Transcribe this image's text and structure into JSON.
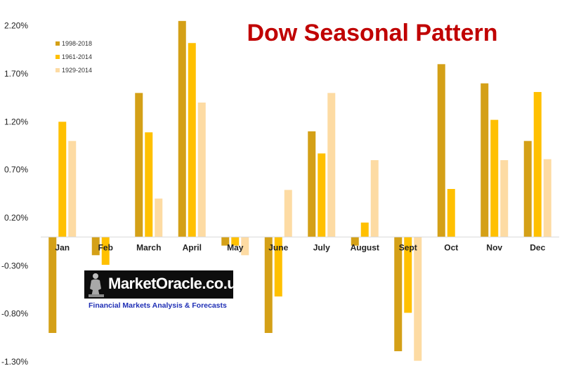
{
  "chart_data": {
    "type": "bar",
    "title": "Dow Seasonal Pattern",
    "categories": [
      "Jan",
      "Feb",
      "March",
      "April",
      "May",
      "June",
      "July",
      "August",
      "Sept",
      "Oct",
      "Nov",
      "Dec"
    ],
    "series": [
      {
        "name": "1998-2018",
        "color": "#d4a017",
        "values": [
          -1.0,
          -0.19,
          1.5,
          2.25,
          -0.09,
          -1.0,
          1.1,
          -0.09,
          -1.19,
          1.8,
          1.6,
          1.0
        ]
      },
      {
        "name": "1961-2014",
        "color": "#ffc000",
        "values": [
          1.2,
          -0.29,
          1.09,
          2.02,
          -0.09,
          -0.62,
          0.87,
          0.15,
          -0.79,
          0.5,
          1.22,
          1.51
        ]
      },
      {
        "name": "1929-2014",
        "color": "#fddba3",
        "values": [
          1.0,
          0.0,
          0.4,
          1.4,
          -0.19,
          0.49,
          1.5,
          0.8,
          -1.29,
          0.0,
          0.8,
          0.81
        ]
      }
    ],
    "yticks": [
      "2.20%",
      "1.70%",
      "1.20%",
      "0.70%",
      "0.20%",
      "-0.30%",
      "-0.80%",
      "-1.30%"
    ],
    "ylim": [
      -1.3,
      2.3
    ],
    "xlabel": "",
    "ylabel": "",
    "grid": false,
    "legend_position": "top-left",
    "title_color": "#c00000"
  },
  "watermark": {
    "name": "MarketOracle.co.uk",
    "tagline": "Financial Markets Analysis & Forecasts"
  }
}
